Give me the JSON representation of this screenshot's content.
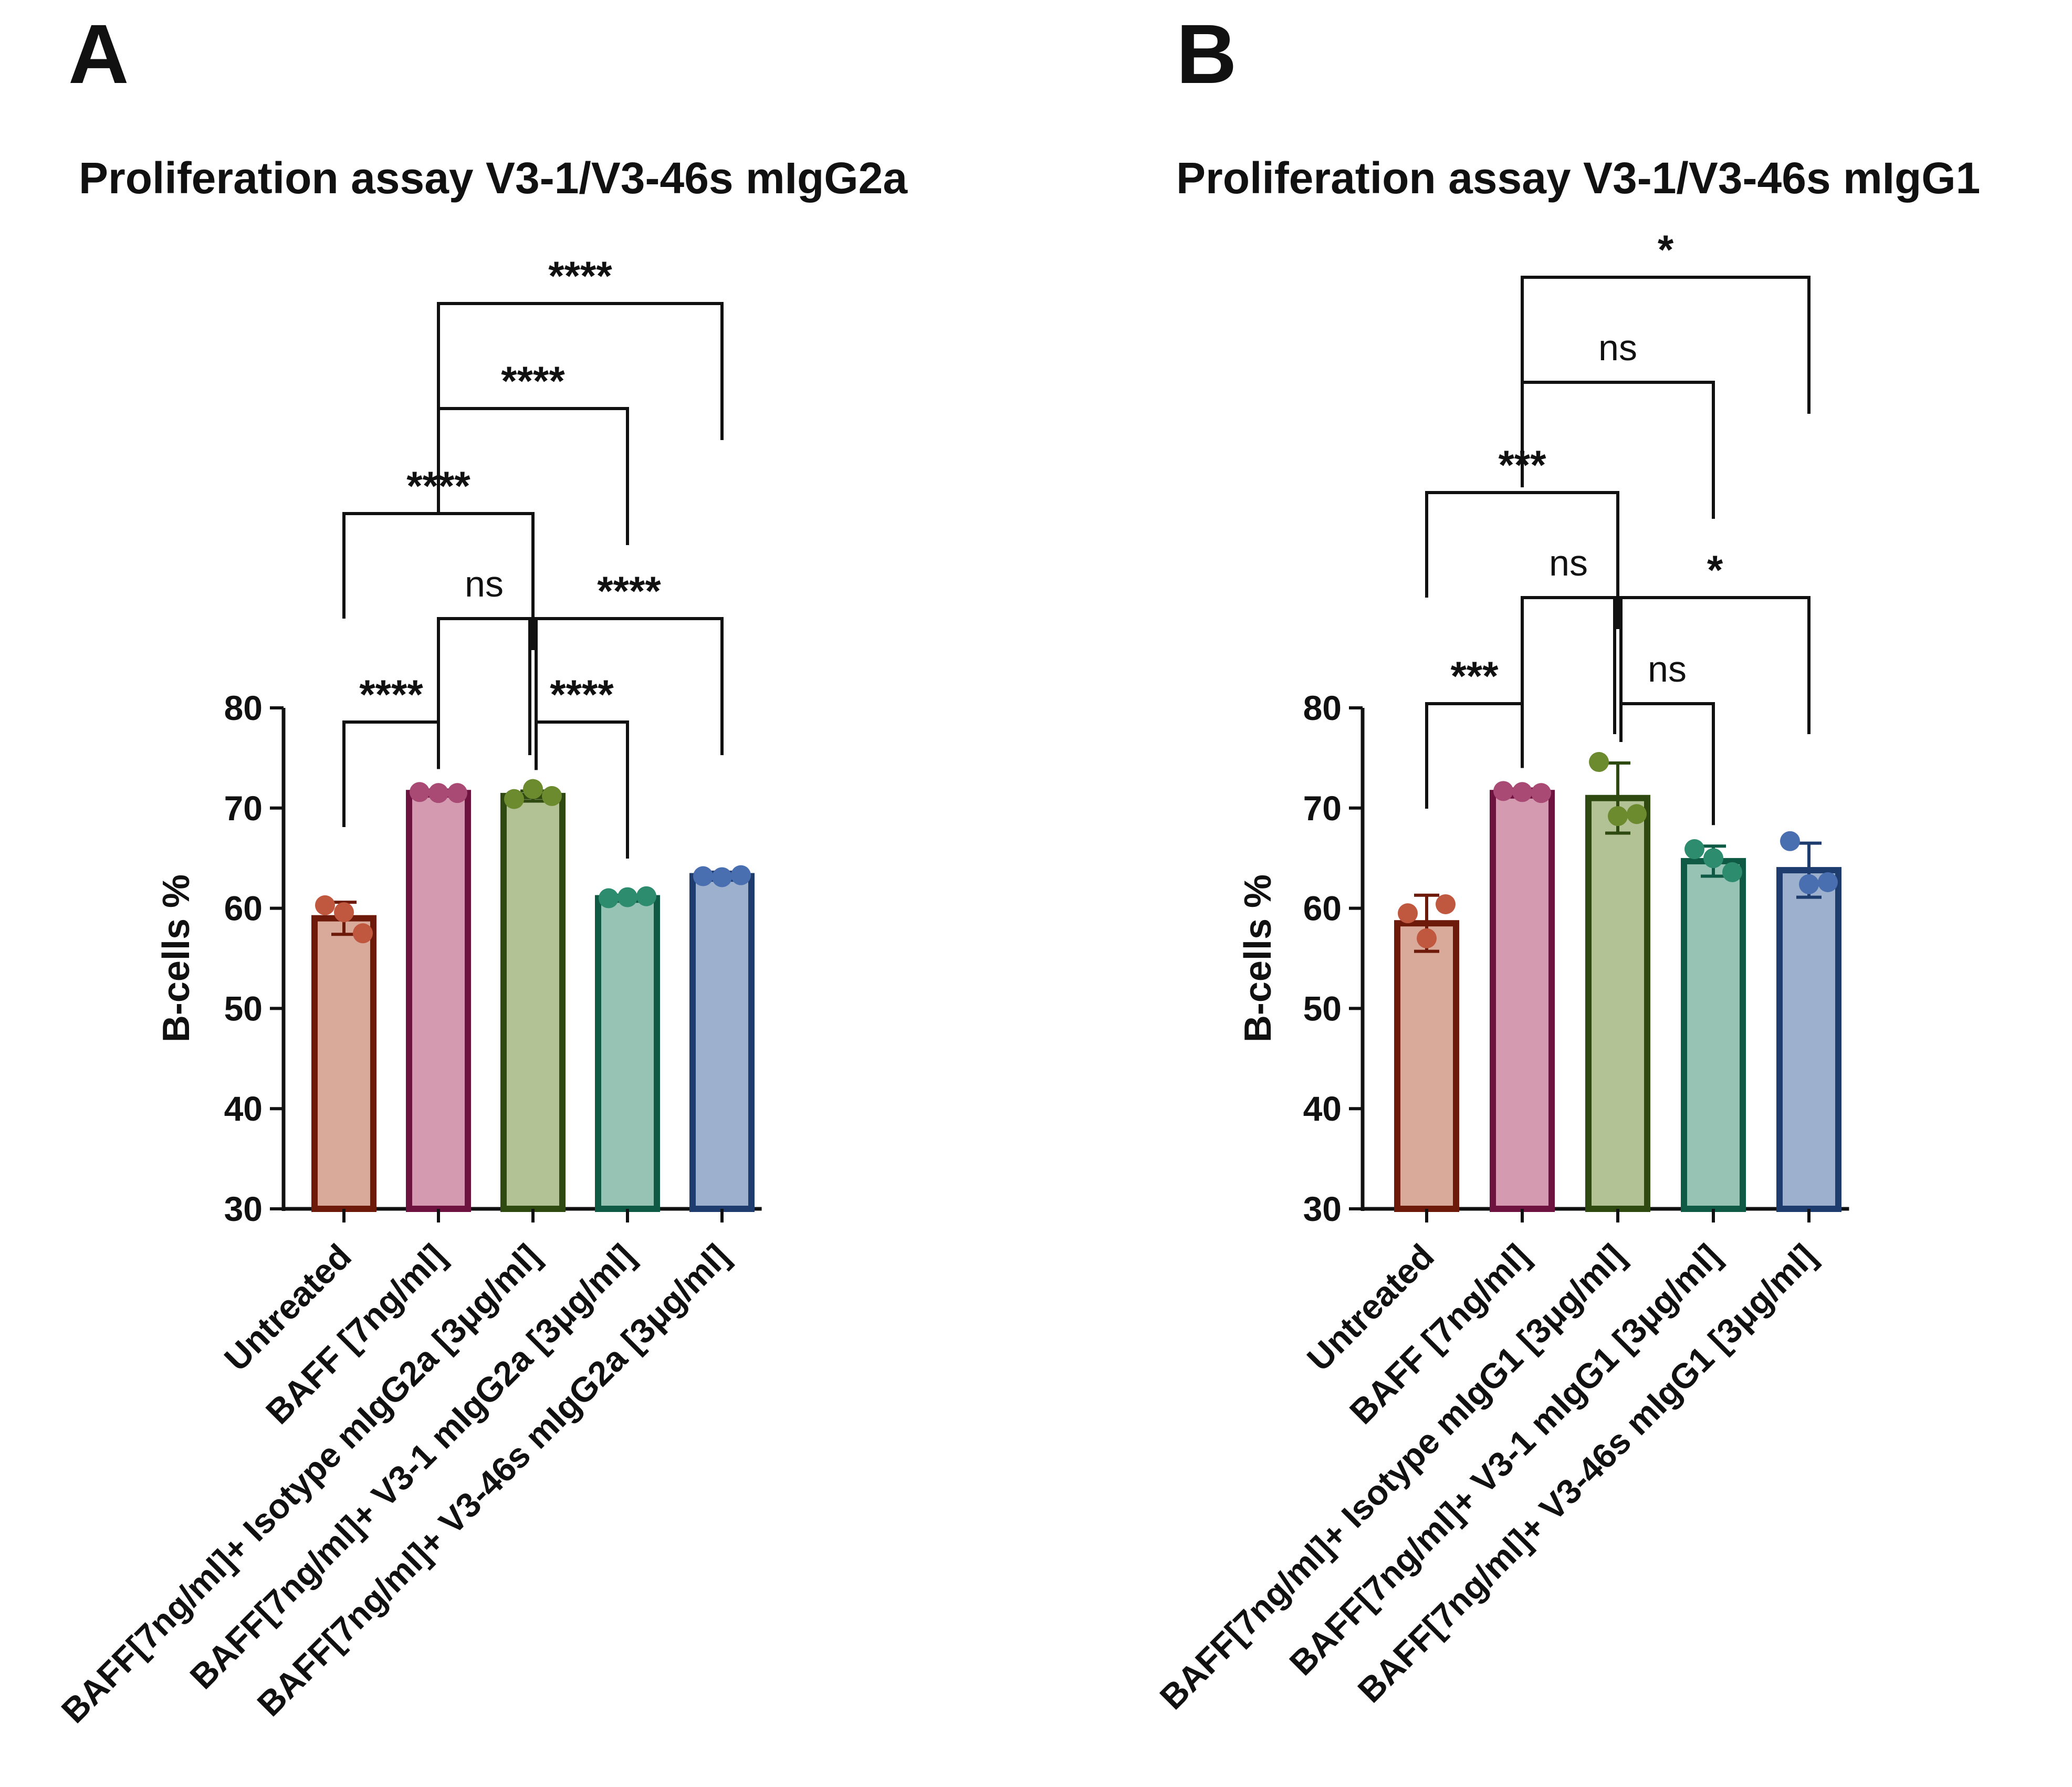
{
  "chart_data": [
    {
      "panel": "A",
      "type": "bar",
      "title": "Proliferation assay V3-1/V3-46s mIgG2a",
      "xlabel": "",
      "ylabel": "B-cells %",
      "ylim": [
        30,
        80
      ],
      "yticks": [
        30,
        40,
        50,
        60,
        70,
        80
      ],
      "grid": false,
      "categories": [
        "Untreated",
        "BAFF [7ng/ml]",
        "BAFF[7ng/ml]+ Isotype mIgG2a [3μg/ml]",
        "BAFF[7ng/ml]+ V3-1 mIgG2a [3μg/ml]",
        "BAFF[7ng/ml]+ V3-46s mIgG2a [3μg/ml]"
      ],
      "values": [
        59.0,
        71.5,
        71.2,
        61.0,
        63.2
      ],
      "errors": [
        1.6,
        0.3,
        0.5,
        0.3,
        0.4
      ],
      "points": [
        [
          60.3,
          59.6,
          57.5
        ],
        [
          71.6,
          71.5,
          71.5
        ],
        [
          70.9,
          71.9,
          71.2
        ],
        [
          61.0,
          61.1,
          61.2
        ],
        [
          63.2,
          63.1,
          63.3
        ]
      ],
      "fill_colors": [
        "#d9a99a",
        "#d49ab0",
        "#b3c295",
        "#96c3b3",
        "#9db0cd"
      ],
      "edge_colors": [
        "#6e1a0a",
        "#6e1240",
        "#2f4a10",
        "#0e5a44",
        "#1e3c6e"
      ],
      "point_colors": [
        "#c0573f",
        "#a84a74",
        "#6c8a2e",
        "#2e8c6e",
        "#4a6fb0"
      ],
      "comparisons": [
        {
          "a": 0,
          "b": 1,
          "label": "****"
        },
        {
          "a": 2,
          "b": 3,
          "label": "****"
        },
        {
          "a": 1,
          "b": 2,
          "label": "ns"
        },
        {
          "a": 2,
          "b": 4,
          "label": "****"
        },
        {
          "a": 0,
          "b": 2,
          "label": "****"
        },
        {
          "a": 1,
          "b": 3,
          "label": "****"
        },
        {
          "a": 1,
          "b": 4,
          "label": "****"
        }
      ]
    },
    {
      "panel": "B",
      "type": "bar",
      "title": "Proliferation assay V3-1/V3-46s mIgG1",
      "xlabel": "",
      "ylabel": "B-cells %",
      "ylim": [
        30,
        80
      ],
      "yticks": [
        30,
        40,
        50,
        60,
        70,
        80
      ],
      "grid": false,
      "categories": [
        "Untreated",
        "BAFF [7ng/ml]",
        "BAFF[7ng/ml]+ Isotype mIgG1 [3μg/ml]",
        "BAFF[7ng/ml]+ V3-1 mIgG1 [3μg/ml]",
        "BAFF[7ng/ml]+ V3-46s mIgG1 [3μg/ml]"
      ],
      "values": [
        58.5,
        71.5,
        71.0,
        64.7,
        63.8
      ],
      "errors": [
        2.8,
        0.4,
        3.5,
        1.5,
        2.7
      ],
      "points": [
        [
          59.5,
          57.0,
          60.4
        ],
        [
          71.7,
          71.6,
          71.5
        ],
        [
          74.6,
          69.2,
          69.4
        ],
        [
          65.9,
          65.0,
          63.6
        ],
        [
          66.7,
          62.4,
          62.6
        ]
      ],
      "fill_colors": [
        "#d9a99a",
        "#d49ab0",
        "#b3c295",
        "#96c3b3",
        "#9db0cd"
      ],
      "edge_colors": [
        "#6e1a0a",
        "#6e1240",
        "#2f4a10",
        "#0e5a44",
        "#1e3c6e"
      ],
      "point_colors": [
        "#c0573f",
        "#a84a74",
        "#6c8a2e",
        "#2e8c6e",
        "#4a6fb0"
      ],
      "comparisons": [
        {
          "a": 0,
          "b": 1,
          "label": "***"
        },
        {
          "a": 2,
          "b": 3,
          "label": "ns"
        },
        {
          "a": 1,
          "b": 2,
          "label": "ns"
        },
        {
          "a": 2,
          "b": 4,
          "label": "*"
        },
        {
          "a": 0,
          "b": 2,
          "label": "***"
        },
        {
          "a": 1,
          "b": 3,
          "label": "ns"
        },
        {
          "a": 1,
          "b": 4,
          "label": "*"
        }
      ]
    }
  ]
}
